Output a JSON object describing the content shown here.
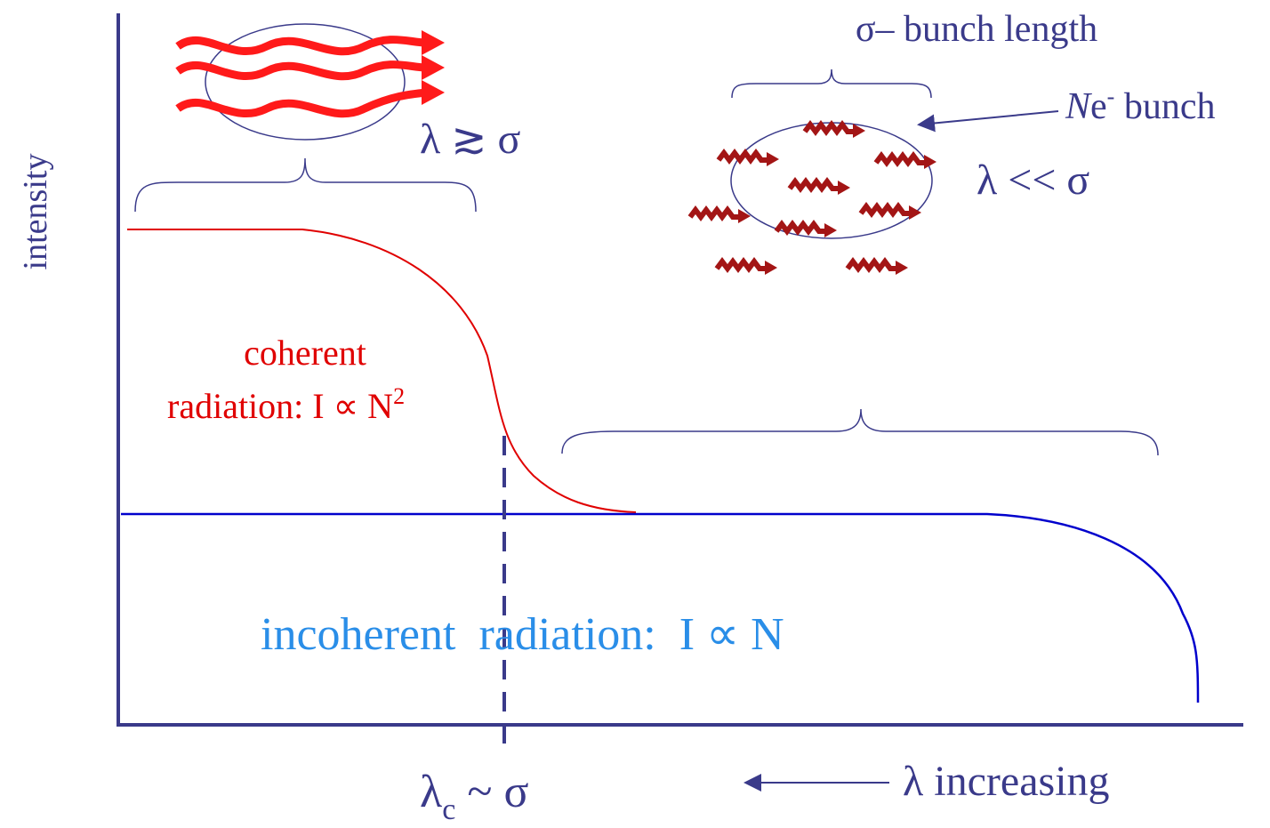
{
  "axis": {
    "y_label": "intensity"
  },
  "bunch_length_label": "σ– bunch length",
  "bunch_label": {
    "n": "N",
    "e": "e",
    "charge": "-",
    "rest": " bunch"
  },
  "long_wavelength_condition": "λ ≳ σ",
  "short_wavelength_condition": "λ << σ",
  "coherent": {
    "line1": "coherent",
    "line2": "radiation:  I ∝ N",
    "power": "2"
  },
  "incoherent": "incoherent  radiation:  I ∝ N",
  "critical": {
    "lambda": "λ",
    "sub": "c",
    "rest": " ~ σ"
  },
  "x_direction_label": "λ increasing"
}
